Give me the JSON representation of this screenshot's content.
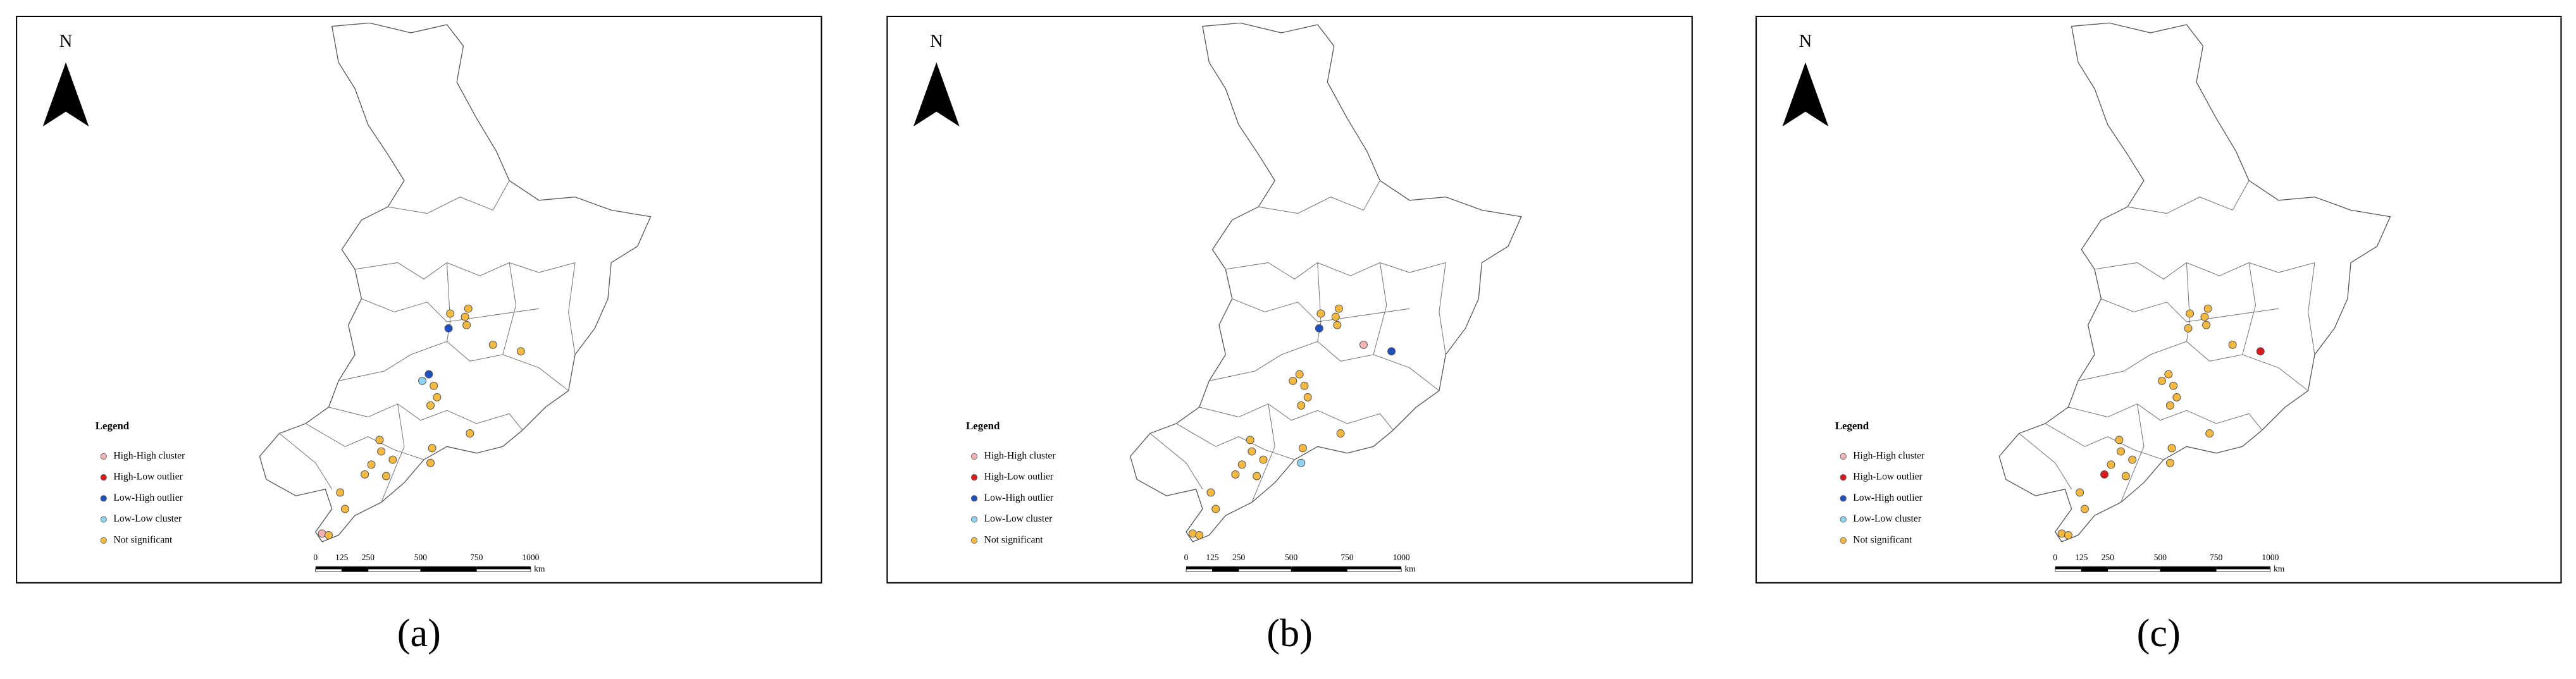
{
  "panels": [
    {
      "caption": "(a)",
      "north": "N",
      "legend": {
        "title": "Legend",
        "items": [
          {
            "label": "High-High cluster",
            "color": "#f7b3b3"
          },
          {
            "label": "High-Low outlier",
            "color": "#d7191c"
          },
          {
            "label": "Low-High outlier",
            "color": "#1f4fbf"
          },
          {
            "label": "Low-Low cluster",
            "color": "#8fd3f0"
          },
          {
            "label": "Not significant",
            "color": "#f5b942"
          }
        ]
      },
      "scale": {
        "ticks": [
          "0",
          "125",
          "250",
          "500",
          "750",
          "1000"
        ],
        "unit": "km"
      }
    },
    {
      "caption": "(b)",
      "north": "N",
      "legend": {
        "title": "Legend",
        "items": [
          {
            "label": "High-High cluster",
            "color": "#f7b3b3"
          },
          {
            "label": "High-Low outlier",
            "color": "#d7191c"
          },
          {
            "label": "Low-High outlier",
            "color": "#1f4fbf"
          },
          {
            "label": "Low-Low cluster",
            "color": "#8fd3f0"
          },
          {
            "label": "Not significant",
            "color": "#f5b942"
          }
        ]
      },
      "scale": {
        "ticks": [
          "0",
          "125",
          "250",
          "500",
          "750",
          "1000"
        ],
        "unit": "km"
      }
    },
    {
      "caption": "(c)",
      "north": "N",
      "legend": {
        "title": "Legend",
        "items": [
          {
            "label": "High-High cluster",
            "color": "#f7b3b3"
          },
          {
            "label": "High-Low outlier",
            "color": "#d7191c"
          },
          {
            "label": "Low-High outlier",
            "color": "#1f4fbf"
          },
          {
            "label": "Low-Low cluster",
            "color": "#8fd3f0"
          },
          {
            "label": "Not significant",
            "color": "#f5b942"
          }
        ]
      },
      "scale": {
        "ticks": [
          "0",
          "125",
          "250",
          "500",
          "750",
          "1000"
        ],
        "unit": "km"
      }
    }
  ]
}
